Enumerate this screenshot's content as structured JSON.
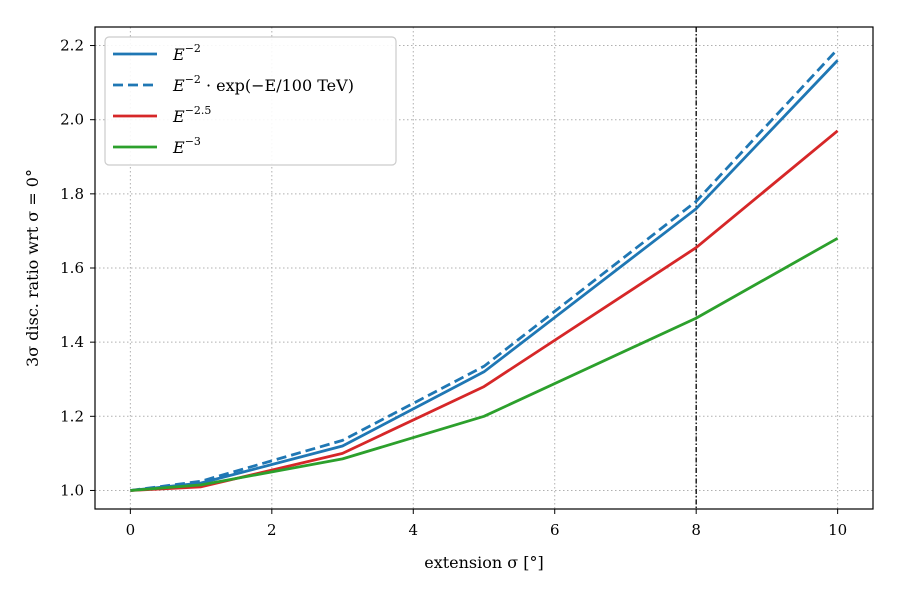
{
  "chart_data": {
    "type": "line",
    "xlabel": "extension σ [°]",
    "ylabel": "3σ disc. ratio wrt σ = 0°",
    "xlim": [
      -0.5,
      10.5
    ],
    "ylim": [
      0.95,
      2.25
    ],
    "x_ticks": [
      0,
      2,
      4,
      6,
      8,
      10
    ],
    "y_ticks": [
      1.0,
      1.2,
      1.4,
      1.6,
      1.8,
      2.0,
      2.2
    ],
    "x_tick_labels": [
      "0",
      "2",
      "4",
      "6",
      "8",
      "10"
    ],
    "y_tick_labels": [
      "1.0",
      "1.2",
      "1.4",
      "1.6",
      "1.8",
      "2.0",
      "2.2"
    ],
    "grid": true,
    "legend_position": "top-left",
    "vertical_line": {
      "x": 8,
      "style": "dash-dot",
      "color": "#000000"
    },
    "series": [
      {
        "name": "E^{-2}",
        "color": "#1f77b4",
        "style": "solid",
        "x": [
          0,
          1,
          3,
          5,
          8,
          10
        ],
        "y": [
          1.0,
          1.02,
          1.12,
          1.32,
          1.76,
          2.16
        ]
      },
      {
        "name": "E^{-2} · exp(−E/100 TeV)",
        "color": "#1f77b4",
        "style": "dashed",
        "x": [
          0,
          1,
          3,
          5,
          8,
          10
        ],
        "y": [
          1.0,
          1.025,
          1.135,
          1.335,
          1.78,
          2.19
        ]
      },
      {
        "name": "E^{-2.5}",
        "color": "#d62728",
        "style": "solid",
        "x": [
          0,
          1,
          3,
          5,
          8,
          10
        ],
        "y": [
          1.0,
          1.01,
          1.1,
          1.28,
          1.655,
          1.97
        ]
      },
      {
        "name": "E^{-3}",
        "color": "#2ca02c",
        "style": "solid",
        "x": [
          0,
          1,
          3,
          5,
          8,
          10
        ],
        "y": [
          1.0,
          1.015,
          1.085,
          1.2,
          1.465,
          1.68
        ]
      }
    ],
    "legend": {
      "entries": [
        {
          "base": "E",
          "sup": "−2",
          "suffix": ""
        },
        {
          "base": "E",
          "sup": "−2",
          "suffix": " · exp(−E/100 TeV)"
        },
        {
          "base": "E",
          "sup": "−2.5",
          "suffix": ""
        },
        {
          "base": "E",
          "sup": "−3",
          "suffix": ""
        }
      ]
    }
  }
}
